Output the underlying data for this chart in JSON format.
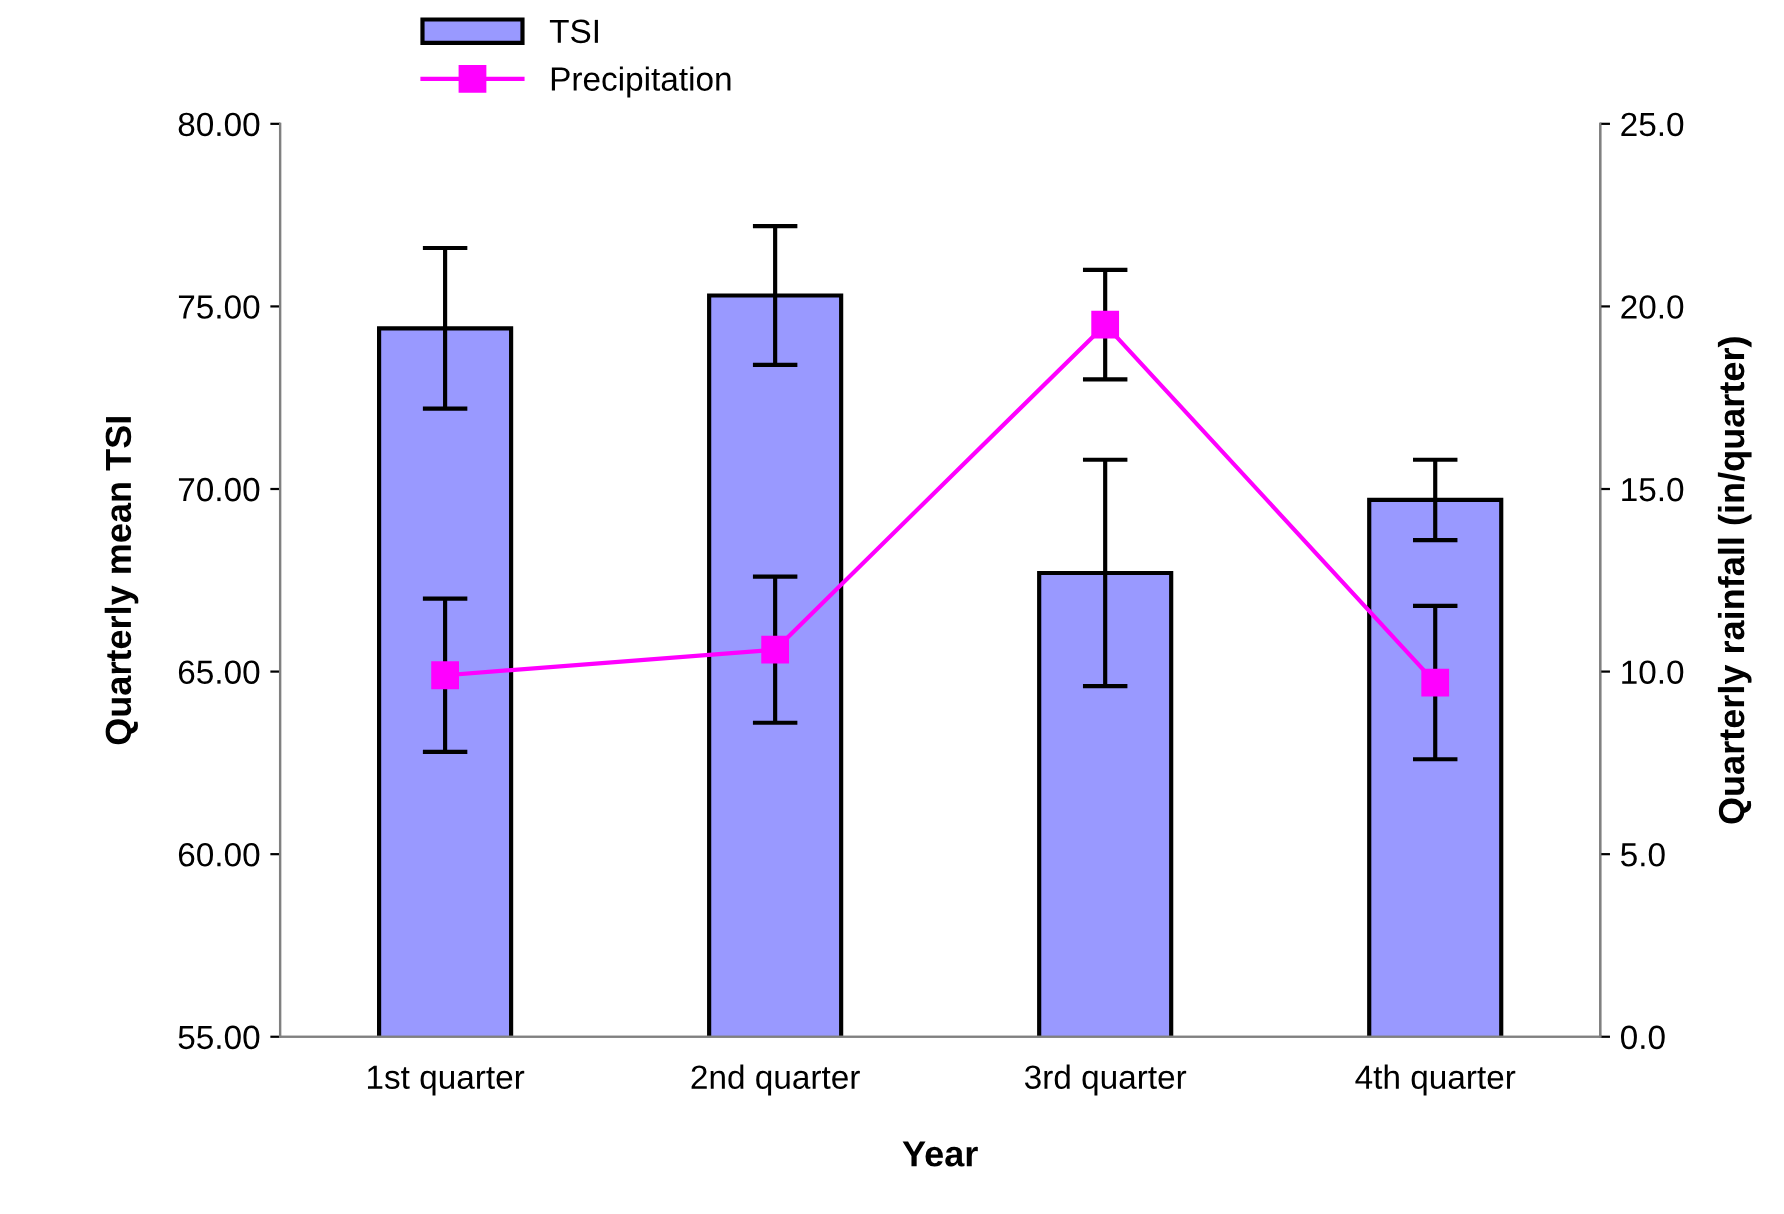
{
  "chart_data": {
    "type": "bar",
    "xlabel": "Year",
    "ylabel": "Quarterly mean TSI",
    "y2label": "Quarterly rainfall (in/quarter)",
    "categories": [
      "1st quarter",
      "2nd quarter",
      "3rd quarter",
      "4th quarter"
    ],
    "series": [
      {
        "name": "TSI",
        "color": "#9999ff",
        "values": [
          74.4,
          75.3,
          67.7,
          69.7
        ],
        "errors": [
          2.2,
          1.9,
          3.1,
          1.1
        ]
      },
      {
        "name": "Precipitation",
        "type": "line",
        "axis": "y2",
        "color": "#ff00ff",
        "marker": "square",
        "values": [
          9.9,
          10.6,
          19.5,
          9.7
        ],
        "errors": [
          2.1,
          2.0,
          1.5,
          2.1
        ]
      }
    ],
    "ylim": [
      55,
      80
    ],
    "yticks": [
      {
        "value": 55,
        "label": "55.00"
      },
      {
        "value": 60,
        "label": "60.00"
      },
      {
        "value": 65,
        "label": "65.00"
      },
      {
        "value": 70,
        "label": "70.00"
      },
      {
        "value": 75,
        "label": "75.00"
      },
      {
        "value": 80,
        "label": "80.00"
      }
    ],
    "y2lim": [
      0,
      25
    ],
    "y2ticks": [
      {
        "value": 0,
        "label": "0.0"
      },
      {
        "value": 5,
        "label": "5.0"
      },
      {
        "value": 10,
        "label": "10.0"
      },
      {
        "value": 15,
        "label": "15.0"
      },
      {
        "value": 20,
        "label": "20.0"
      },
      {
        "value": 25,
        "label": "25.0"
      }
    ],
    "grid": false,
    "legend": "top"
  }
}
